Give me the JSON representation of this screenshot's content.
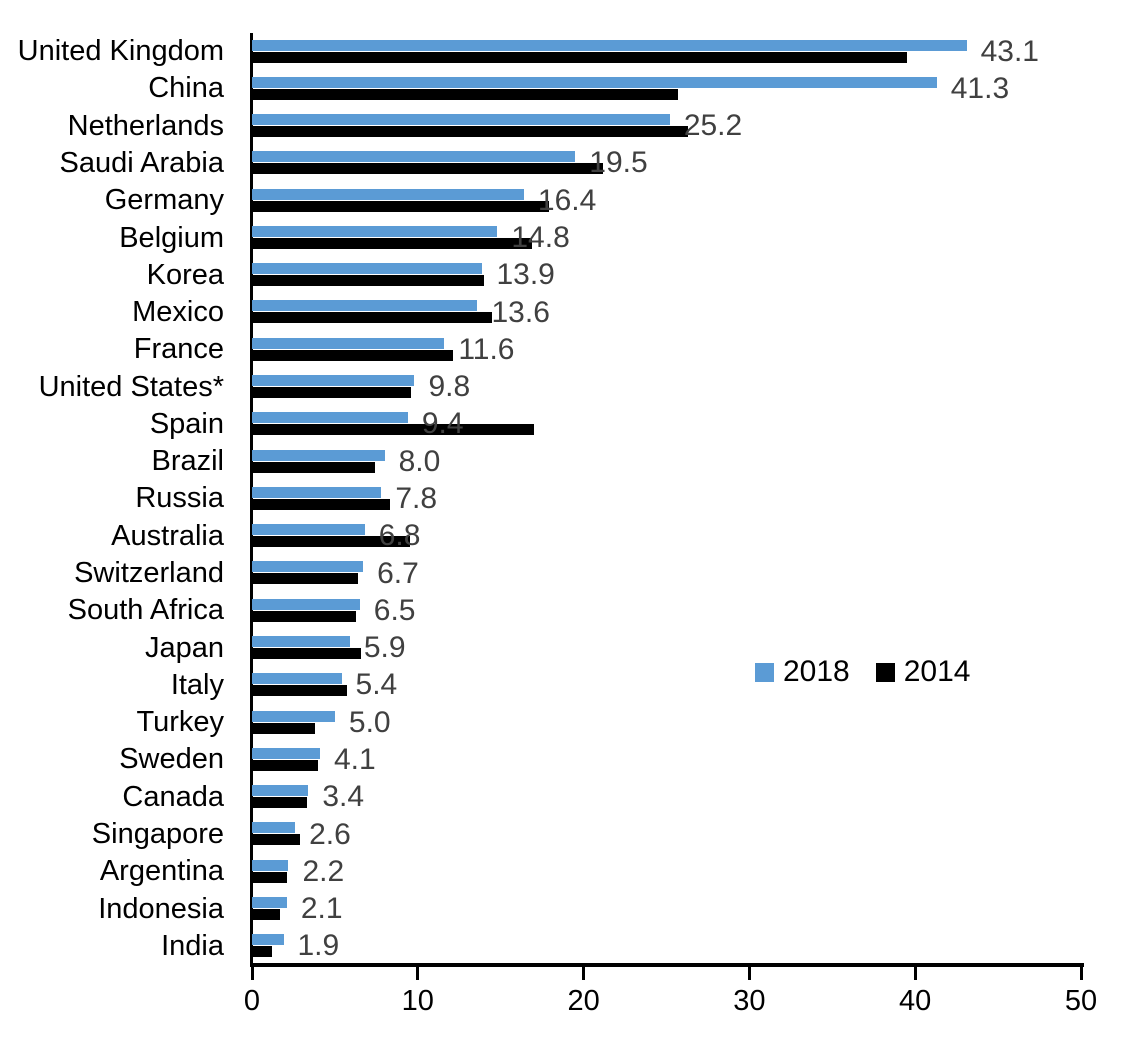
{
  "page": {
    "background": "#ffffff"
  },
  "chart_data": {
    "type": "bar",
    "orientation": "horizontal",
    "title": "",
    "xlabel": "",
    "ylabel": "",
    "categories": [
      "United Kingdom",
      "China",
      "Netherlands",
      "Saudi Arabia",
      "Germany",
      "Belgium",
      "Korea",
      "Mexico",
      "France",
      "United States*",
      "Spain",
      "Brazil",
      "Russia",
      "Australia",
      "Switzerland",
      "South Africa",
      "Japan",
      "Italy",
      "Turkey",
      "Sweden",
      "Canada",
      "Singapore",
      "Argentina",
      "Indonesia",
      "India"
    ],
    "series": [
      {
        "name": "2018",
        "color": "#5B9BD5",
        "values": [
          43.1,
          41.3,
          25.2,
          19.5,
          16.4,
          14.8,
          13.9,
          13.6,
          11.6,
          9.8,
          9.4,
          8.0,
          7.8,
          6.8,
          6.7,
          6.5,
          5.9,
          5.4,
          5.0,
          4.1,
          3.4,
          2.6,
          2.2,
          2.1,
          1.9
        ],
        "data_labels": [
          "43.1",
          "41.3",
          "25.2",
          "19.5",
          "16.4",
          "14.8",
          "13.9",
          "13.6",
          "11.6",
          "9.8",
          "9.4",
          "8.0",
          "7.8",
          "6.8",
          "6.7",
          "6.5",
          "5.9",
          "5.4",
          "5.0",
          "4.1",
          "3.4",
          "2.6",
          "2.2",
          "2.1",
          "1.9"
        ]
      },
      {
        "name": "2014",
        "color": "#000000",
        "values": [
          39.5,
          25.7,
          26.3,
          21.2,
          17.9,
          16.9,
          14.0,
          14.5,
          12.1,
          9.6,
          17.0,
          7.4,
          8.3,
          9.5,
          6.4,
          6.3,
          6.6,
          5.7,
          3.8,
          4.0,
          3.3,
          2.9,
          2.1,
          1.7,
          1.2
        ]
      }
    ],
    "xlim": [
      0,
      50
    ],
    "x_ticks": [
      "0",
      "10",
      "20",
      "30",
      "40",
      "50"
    ],
    "grid": false,
    "legend": {
      "position": "middle-right",
      "entries": [
        {
          "label": "2018",
          "color": "#5B9BD5"
        },
        {
          "label": "2014",
          "color": "#000000"
        }
      ]
    },
    "value_label_color": "#404040"
  }
}
